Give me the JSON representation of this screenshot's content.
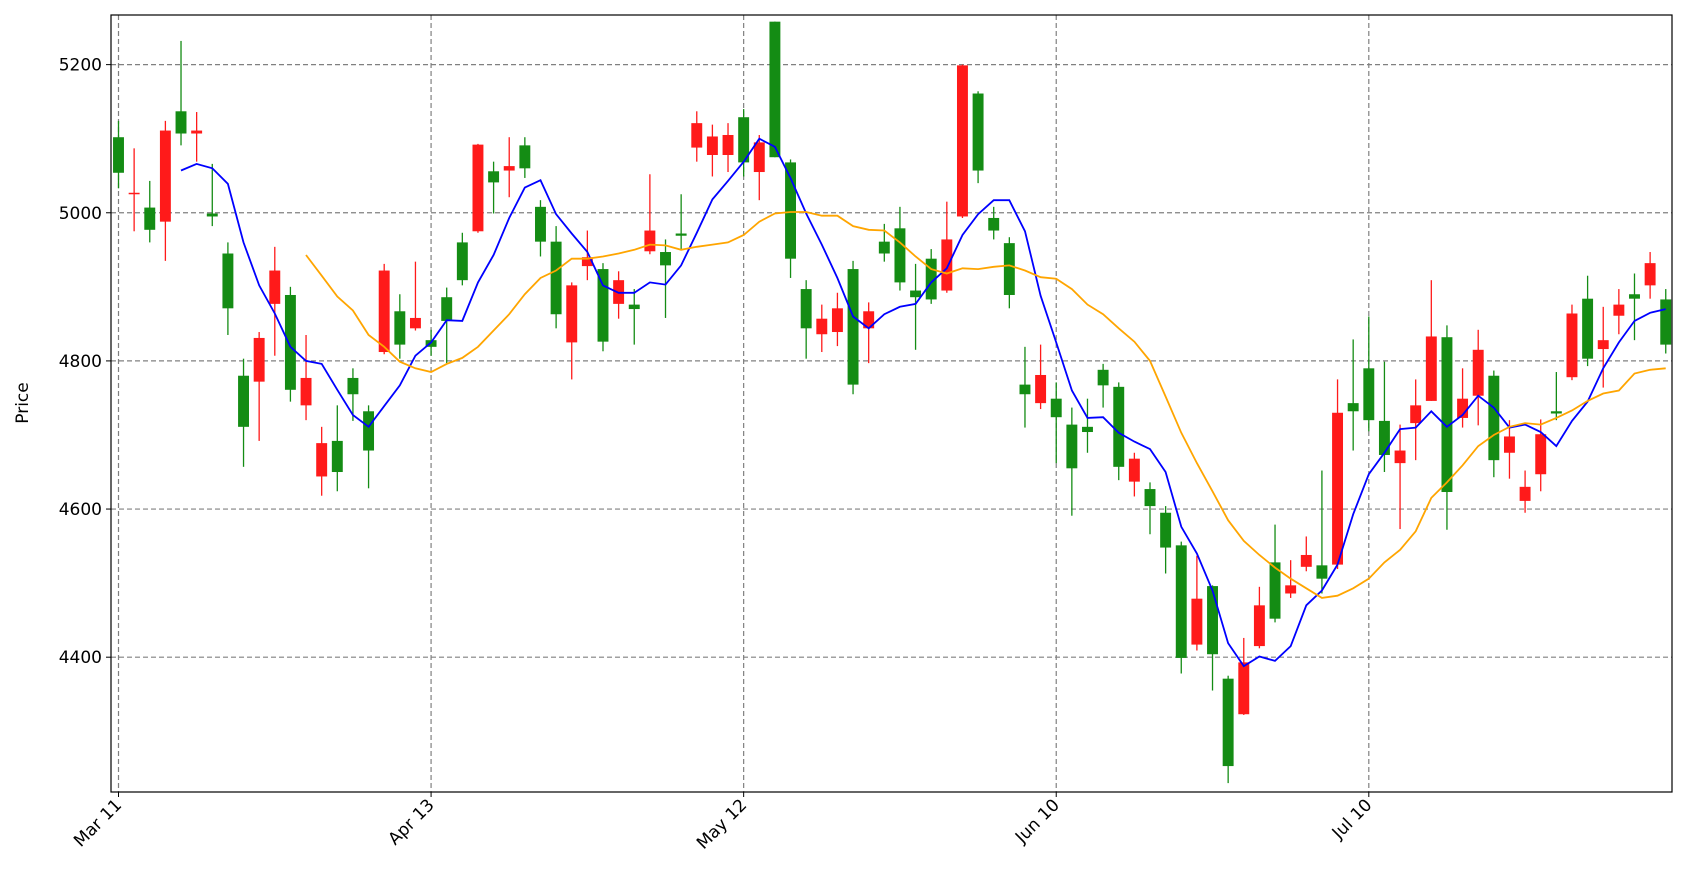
{
  "chart_data": {
    "type": "candlestick",
    "ylabel": "Price",
    "ylim": [
      4218,
      5267
    ],
    "yticks": [
      4400,
      4600,
      4800,
      5000,
      5200
    ],
    "grid": true,
    "up_color": "#148c14",
    "down_color": "#ff1a1a",
    "categories": [
      "Mar 11",
      null,
      null,
      null,
      null,
      null,
      null,
      null,
      null,
      null,
      null,
      null,
      null,
      null,
      null,
      null,
      null,
      null,
      null,
      null,
      "Apr 13",
      null,
      null,
      null,
      null,
      null,
      null,
      null,
      null,
      null,
      null,
      null,
      null,
      null,
      null,
      null,
      null,
      null,
      null,
      null,
      "May 12",
      null,
      null,
      null,
      null,
      null,
      null,
      null,
      null,
      null,
      null,
      null,
      null,
      null,
      null,
      null,
      null,
      null,
      null,
      null,
      "Jun 10",
      null,
      null,
      null,
      null,
      null,
      null,
      null,
      null,
      null,
      null,
      null,
      null,
      null,
      null,
      null,
      null,
      null,
      null,
      null,
      "Jul 10",
      null,
      null,
      null,
      null,
      null,
      null,
      null,
      null,
      null,
      null,
      null,
      null,
      null,
      null,
      null,
      null,
      null,
      null,
      null
    ],
    "open": [
      5054,
      5027,
      4977,
      5111,
      5107,
      5111,
      4995,
      4871,
      4711,
      4831,
      4922,
      4761,
      4777,
      4689,
      4650,
      4755,
      4679,
      4922,
      4822,
      4858,
      4819,
      4854,
      4909,
      5092,
      5041,
      5063,
      5060,
      4961,
      4863,
      4902,
      4940,
      4826,
      4909,
      4870,
      4976,
      4929,
      4969,
      5121,
      5103,
      5105,
      5068,
      5095,
      5075,
      4938,
      4844,
      4857,
      4871,
      4768,
      4867,
      4945,
      4906,
      4886,
      4883,
      4964,
      5199,
      5057,
      4976,
      4889,
      4755,
      4781,
      4724,
      4655,
      4704,
      4767,
      4657,
      4668,
      4604,
      4548,
      4399,
      4479,
      4404,
      4253,
      4393,
      4470,
      4452,
      4497,
      4538,
      4506,
      4730,
      4732,
      4720,
      4673,
      4679,
      4740,
      4833,
      4623,
      4749,
      4815,
      4666,
      4698,
      4630,
      4701,
      4729,
      4864,
      4803,
      4828,
      4876,
      4884,
      4932,
      4822
    ],
    "high": [
      5124,
      5087,
      5043,
      5124,
      5232,
      5136,
      5066,
      4960,
      4803,
      4839,
      4954,
      4900,
      4835,
      4711,
      4740,
      4790,
      4740,
      4931,
      4890,
      4934,
      4842,
      4899,
      4973,
      5093,
      5069,
      5102,
      5102,
      5017,
      4982,
      4906,
      4976,
      4932,
      4921,
      4897,
      5052,
      4964,
      5025,
      5137,
      5119,
      5121,
      5140,
      5105,
      5258,
      5072,
      4909,
      4876,
      4892,
      4935,
      4879,
      4985,
      5008,
      4931,
      4951,
      5015,
      5200,
      5164,
      5008,
      4967,
      4819,
      4822,
      4771,
      4737,
      4749,
      4796,
      4771,
      4676,
      4636,
      4604,
      4556,
      4537,
      4497,
      4375,
      4426,
      4495,
      4579,
      4531,
      4563,
      4652,
      4775,
      4829,
      4860,
      4799,
      4714,
      4775,
      4909,
      4848,
      4790,
      4842,
      4787,
      4720,
      4652,
      4721,
      4785,
      4876,
      4915,
      4873,
      4897,
      4918,
      4947,
      4897
    ],
    "low": [
      5033,
      4975,
      4960,
      4935,
      5091,
      5069,
      4982,
      4835,
      4657,
      4692,
      4807,
      4745,
      4720,
      4618,
      4624,
      4719,
      4628,
      4809,
      4803,
      4841,
      4807,
      4797,
      4902,
      4973,
      4999,
      5021,
      5047,
      4941,
      4844,
      4775,
      4909,
      4813,
      4857,
      4822,
      4944,
      4858,
      4951,
      5069,
      5049,
      5055,
      5049,
      5017,
      5075,
      4912,
      4803,
      4812,
      4820,
      4755,
      4797,
      4934,
      4895,
      4815,
      4877,
      4892,
      4993,
      5040,
      4964,
      4871,
      4710,
      4735,
      4662,
      4591,
      4676,
      4737,
      4639,
      4617,
      4566,
      4513,
      4378,
      4409,
      4355,
      4230,
      4322,
      4412,
      4447,
      4480,
      4516,
      4486,
      4519,
      4679,
      4705,
      4650,
      4573,
      4666,
      4746,
      4572,
      4710,
      4713,
      4643,
      4641,
      4595,
      4624,
      4720,
      4774,
      4793,
      4764,
      4836,
      4828,
      4884,
      4810
    ],
    "close": [
      5102,
      5025,
      5007,
      4988,
      5137,
      5107,
      4999,
      4945,
      4780,
      4772,
      4877,
      4889,
      4740,
      4644,
      4692,
      4777,
      4732,
      4812,
      4867,
      4844,
      4828,
      4886,
      4960,
      4975,
      5056,
      5057,
      5091,
      5008,
      4961,
      4825,
      4928,
      4924,
      4877,
      4876,
      4948,
      4947,
      4972,
      5088,
      5078,
      5078,
      5129,
      5055,
      5258,
      5068,
      4897,
      4836,
      4839,
      4924,
      4844,
      4961,
      4979,
      4895,
      4938,
      4895,
      4995,
      5161,
      4993,
      4959,
      4768,
      4743,
      4749,
      4714,
      4711,
      4788,
      4765,
      4637,
      4627,
      4595,
      4551,
      4417,
      4496,
      4371,
      4323,
      4415,
      4528,
      4486,
      4522,
      4524,
      4525,
      4743,
      4790,
      4719,
      4662,
      4716,
      4746,
      4832,
      4723,
      4753,
      4780,
      4676,
      4611,
      4647,
      4732,
      4778,
      4884,
      4816,
      4861,
      4890,
      4902,
      4883
    ],
    "series": [
      {
        "color": "#0000ff",
        "values": [
          null,
          null,
          null,
          null,
          5057,
          5066,
          5060,
          5039,
          4960,
          4902,
          4864,
          4819,
          4800,
          4796,
          4761,
          4727,
          4711,
          4739,
          4767,
          4807,
          4825,
          4855,
          4854,
          4906,
          4943,
          4993,
          5034,
          5044,
          4998,
          4972,
          4947,
          4902,
          4892,
          4892,
          4906,
          4903,
          4929,
          4973,
          5018,
          5043,
          5069,
          5100,
          5089,
          5047,
          4999,
          4957,
          4912,
          4860,
          4844,
          4863,
          4873,
          4877,
          4906,
          4925,
          4970,
          4998,
          5017,
          5017,
          4975,
          4888,
          4825,
          4760,
          4723,
          4724,
          4703,
          4691,
          4681,
          4650,
          4576,
          4540,
          4490,
          4419,
          4388,
          4401,
          4395,
          4415,
          4470,
          4490,
          4525,
          4593,
          4647,
          4676,
          4708,
          4710,
          4732,
          4711,
          4727,
          4753,
          4737,
          4710,
          4714,
          4704,
          4685,
          4719,
          4745,
          4790,
          4825,
          4854,
          4865,
          4870
        ]
      },
      {
        "color": "#ffa500",
        "values": [
          null,
          null,
          null,
          null,
          null,
          null,
          null,
          null,
          null,
          null,
          null,
          null,
          4943,
          4915,
          4887,
          4868,
          4835,
          4819,
          4799,
          4790,
          4785,
          4796,
          4804,
          4819,
          4841,
          4863,
          4890,
          4912,
          4922,
          4938,
          4938,
          4941,
          4945,
          4950,
          4957,
          4956,
          4950,
          4954,
          4957,
          4960,
          4970,
          4988,
          4999,
          5001,
          5001,
          4996,
          4996,
          4982,
          4977,
          4976,
          4960,
          4941,
          4924,
          4918,
          4925,
          4924,
          4927,
          4929,
          4922,
          4913,
          4911,
          4897,
          4876,
          4863,
          4844,
          4826,
          4800,
          4752,
          4703,
          4662,
          4624,
          4585,
          4557,
          4538,
          4521,
          4506,
          4493,
          4480,
          4483,
          4493,
          4506,
          4528,
          4545,
          4570,
          4615,
          4636,
          4659,
          4685,
          4700,
          4711,
          4716,
          4714,
          4723,
          4733,
          4746,
          4756,
          4760,
          4783,
          4788,
          4790
        ]
      }
    ]
  }
}
